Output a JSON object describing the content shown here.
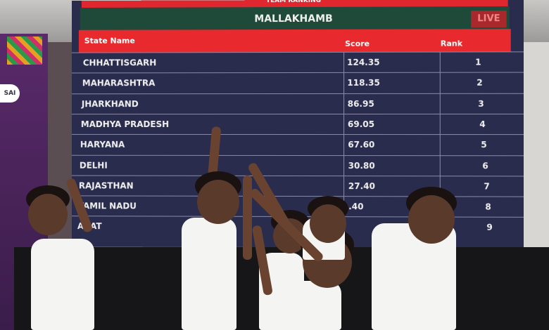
{
  "banner": {
    "logo_text": "SAI"
  },
  "board": {
    "top_label": "TEAM RANKING",
    "title": "MALLAKHAMB",
    "live_label": "LIVE",
    "columns": {
      "state": "State Name",
      "score": "Score",
      "rank": "Rank"
    },
    "rows": [
      {
        "state": "CHHATTISGARH",
        "score": "124.35",
        "rank": "1"
      },
      {
        "state": "MAHARASHTRA",
        "score": "118.35",
        "rank": "2"
      },
      {
        "state": "JHARKHAND",
        "score": "86.95",
        "rank": "3"
      },
      {
        "state": "MADHYA PRADESH",
        "score": "69.05",
        "rank": "4"
      },
      {
        "state": "HARYANA",
        "score": "67.60",
        "rank": "5"
      },
      {
        "state": "DELHI",
        "score": "30.80",
        "rank": "6"
      },
      {
        "state": "RAJASTHAN",
        "score": "27.40",
        "rank": "7"
      },
      {
        "state": "TAMIL NADU",
        "score": ".40",
        "rank": "8"
      },
      {
        "state": "ARAT",
        "score": "",
        "rank": "9"
      }
    ],
    "colors": {
      "header_red": "#e82a2e",
      "title_green": "#1f4a3a",
      "body_navy": "#2a2c4e"
    }
  }
}
